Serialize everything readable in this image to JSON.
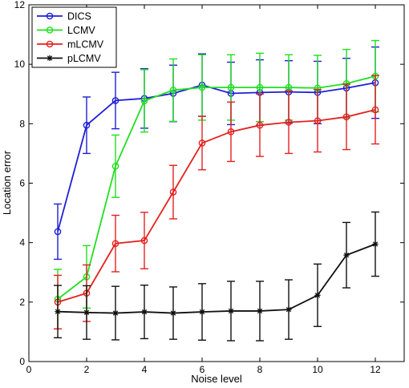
{
  "chart_data": {
    "type": "line",
    "xlabel": "Noise level",
    "ylabel": "Location error",
    "xlim": [
      0,
      13
    ],
    "ylim": [
      0,
      12
    ],
    "xticks": [
      0,
      2,
      4,
      6,
      8,
      10,
      12
    ],
    "yticks": [
      0,
      2,
      4,
      6,
      8,
      10,
      12
    ],
    "legend_position": "top-left",
    "grid": false,
    "x": [
      1,
      2,
      3,
      4,
      5,
      6,
      7,
      8,
      9,
      10,
      11,
      12
    ],
    "series": [
      {
        "name": "DICS",
        "color": "#1f1fd6",
        "marker": "circle",
        "values": [
          4.37,
          7.95,
          8.78,
          8.85,
          9.02,
          9.3,
          9.02,
          9.05,
          9.07,
          9.05,
          9.2,
          9.38
        ],
        "errors": [
          0.93,
          0.95,
          0.95,
          1.0,
          0.95,
          1.05,
          1.05,
          1.1,
          1.05,
          1.05,
          1.0,
          1.2
        ]
      },
      {
        "name": "LCMV",
        "color": "#1fe01f",
        "marker": "circle",
        "values": [
          2.1,
          2.85,
          6.57,
          8.77,
          9.13,
          9.22,
          9.22,
          9.22,
          9.22,
          9.2,
          9.35,
          9.6
        ],
        "errors": [
          1.0,
          1.05,
          1.05,
          1.05,
          1.05,
          1.1,
          1.1,
          1.15,
          1.1,
          1.1,
          1.15,
          1.2
        ]
      },
      {
        "name": "mLCMV",
        "color": "#e52020",
        "marker": "circle",
        "values": [
          2.0,
          2.3,
          3.97,
          4.07,
          5.7,
          7.35,
          7.73,
          7.95,
          8.05,
          8.1,
          8.23,
          8.47
        ],
        "errors": [
          0.9,
          0.95,
          0.95,
          0.95,
          0.9,
          0.9,
          1.0,
          1.05,
          1.05,
          1.05,
          1.1,
          1.15
        ]
      },
      {
        "name": "pLCMV",
        "color": "#111111",
        "marker": "star",
        "values": [
          1.68,
          1.65,
          1.63,
          1.67,
          1.63,
          1.67,
          1.7,
          1.7,
          1.75,
          2.23,
          3.58,
          3.95
        ],
        "errors": [
          0.88,
          0.9,
          0.9,
          0.9,
          0.88,
          0.95,
          1.0,
          1.0,
          1.0,
          1.05,
          1.1,
          1.08
        ]
      }
    ]
  }
}
